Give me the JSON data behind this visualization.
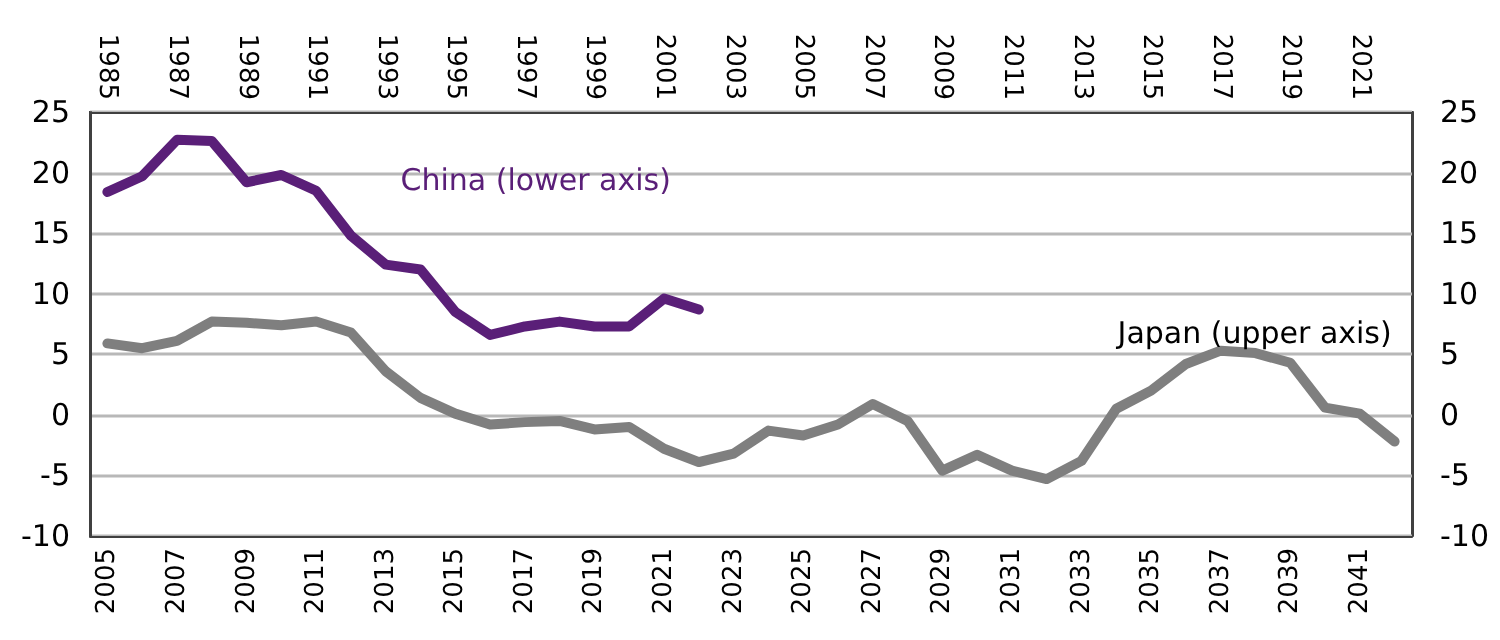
{
  "chart_data": {
    "type": "line",
    "xlim": [
      2004.5,
      2042.5
    ],
    "xticks": [
      2005,
      2007,
      2009,
      2011,
      2013,
      2015,
      2017,
      2019,
      2021,
      2023,
      2025,
      2027,
      2029,
      2031,
      2033,
      2035,
      2037,
      2039,
      2041
    ],
    "x2lim": [
      1984.5,
      2022.5
    ],
    "x2ticks": [
      1985,
      1987,
      1989,
      1991,
      1993,
      1995,
      1997,
      1999,
      2001,
      2003,
      2005,
      2007,
      2009,
      2011,
      2013,
      2015,
      2017,
      2019,
      2021
    ],
    "ylim": [
      -10,
      25
    ],
    "yticks": [
      -10,
      -5,
      0,
      5,
      10,
      15,
      20,
      25
    ],
    "y2lim": [
      -10,
      25
    ],
    "y2ticks": [
      -10,
      -5,
      0,
      5,
      10,
      15,
      20,
      25
    ],
    "grid": "y",
    "marker": "none",
    "line_style": "solid",
    "series": [
      {
        "name": "China (lower axis)",
        "color": "#5a1f78",
        "x": [
          2005,
          2006,
          2007,
          2008,
          2009,
          2010,
          2011,
          2012,
          2013,
          2014,
          2015,
          2016,
          2017,
          2018,
          2019,
          2020,
          2021,
          2022
        ],
        "values": [
          18.4,
          19.7,
          22.7,
          22.6,
          19.2,
          19.8,
          18.5,
          14.8,
          12.4,
          12.0,
          8.5,
          6.6,
          7.3,
          7.7,
          7.3,
          7.3,
          9.6,
          8.7
        ]
      },
      {
        "name": "Japan (upper axis)",
        "color": "#7f7f7f",
        "axis": "x2",
        "x": [
          1985,
          1986,
          1987,
          1988,
          1989,
          1990,
          1991,
          1992,
          1993,
          1994,
          1995,
          1996,
          1997,
          1998,
          1999,
          2000,
          2001,
          2002,
          2003,
          2004,
          2005,
          2006,
          2007,
          2008,
          2009,
          2010,
          2011,
          2012,
          2013,
          2014,
          2015,
          2016,
          2017,
          2018,
          2019,
          2020,
          2021,
          2022
        ],
        "values": [
          5.9,
          5.5,
          6.1,
          7.7,
          7.6,
          7.4,
          7.7,
          6.8,
          3.6,
          1.4,
          0.1,
          -0.8,
          -0.6,
          -0.5,
          -1.2,
          -1.0,
          -2.8,
          -3.9,
          -3.2,
          -1.3,
          -1.7,
          -0.8,
          0.9,
          -0.5,
          -4.6,
          -3.3,
          -4.6,
          -5.3,
          -3.8,
          0.5,
          2.0,
          4.2,
          5.3,
          5.1,
          4.3,
          0.6,
          0.1,
          -2.2
        ]
      }
    ]
  }
}
